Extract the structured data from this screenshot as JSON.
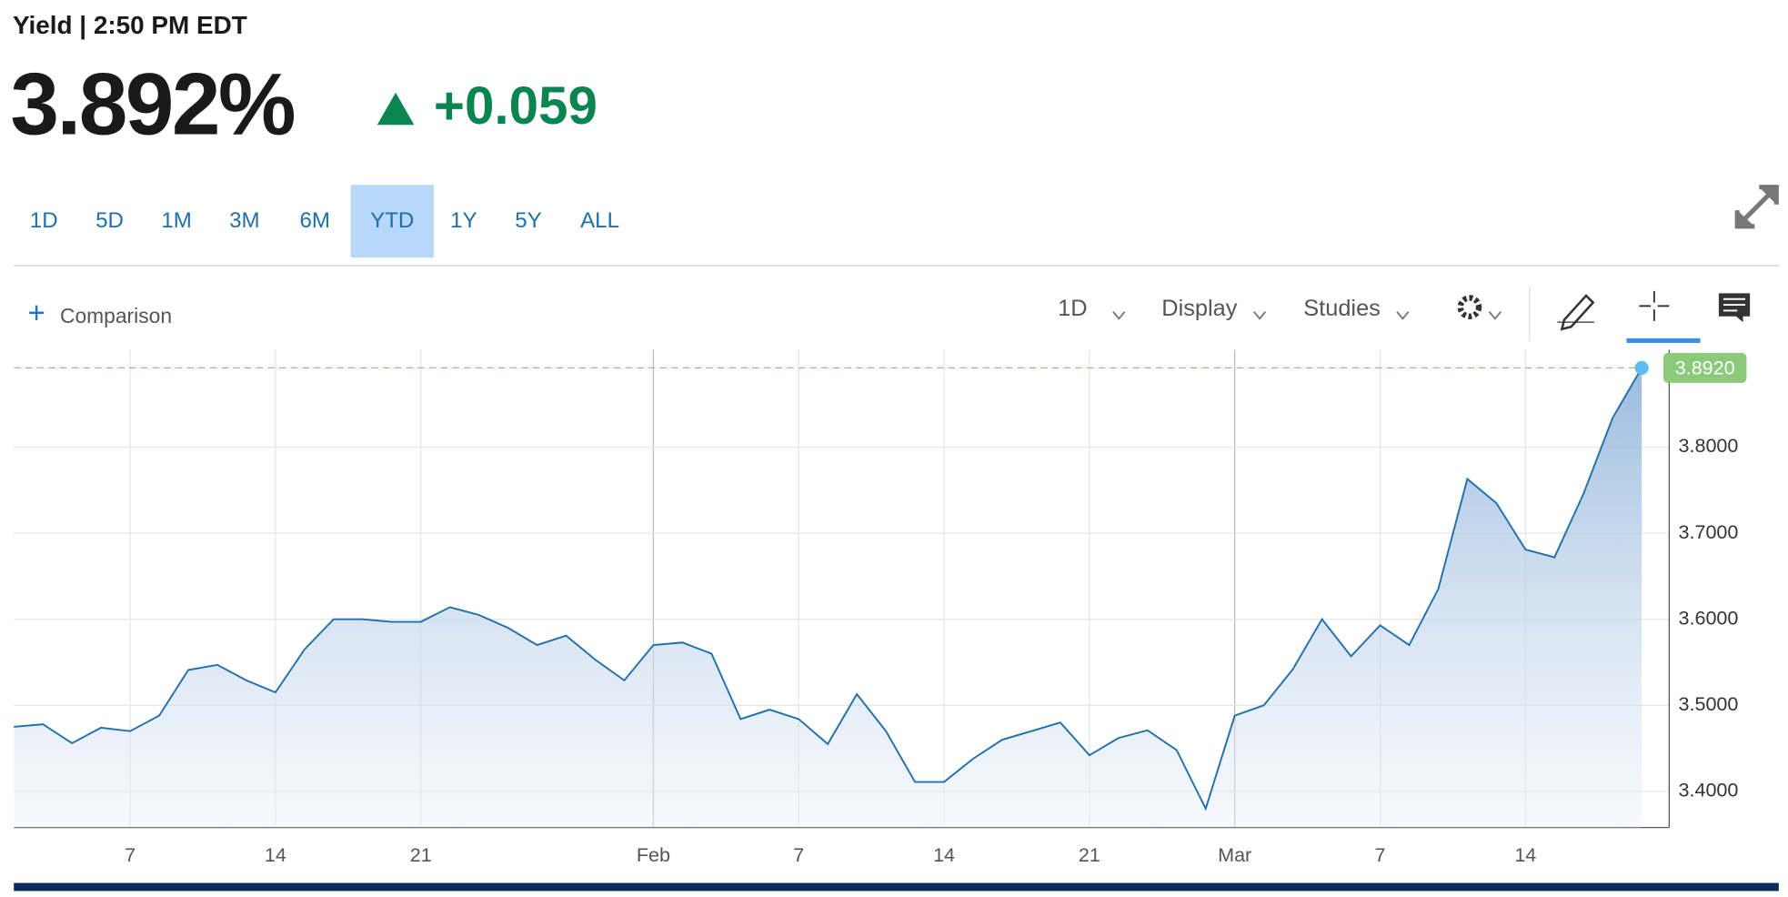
{
  "header": {
    "label": "Yield | 2:50 PM EDT",
    "price": "3.892%",
    "change": "+0.059"
  },
  "ranges": [
    "1D",
    "5D",
    "1M",
    "3M",
    "6M",
    "YTD",
    "1Y",
    "5Y",
    "ALL"
  ],
  "selected_range": "YTD",
  "toolbar": {
    "comparison": "Comparison",
    "interval": "1D",
    "display": "Display",
    "studies": "Studies"
  },
  "chart_data": {
    "type": "line",
    "categories": [
      null,
      null,
      null,
      null,
      "7",
      null,
      null,
      null,
      null,
      "14",
      null,
      null,
      null,
      null,
      "21",
      null,
      null,
      null,
      null,
      null,
      null,
      null,
      "Feb",
      null,
      null,
      null,
      null,
      "7",
      null,
      null,
      null,
      null,
      "14",
      null,
      null,
      null,
      null,
      "21",
      null,
      null,
      null,
      null,
      "Mar",
      null,
      null,
      null,
      null,
      "7",
      null,
      null,
      null,
      null,
      "14",
      null,
      null,
      null,
      null
    ],
    "series": [
      {
        "name": "Yield",
        "color": "#1f6fad",
        "values": [
          3.475,
          3.478,
          3.456,
          3.474,
          3.47,
          3.488,
          3.541,
          3.547,
          3.529,
          3.515,
          3.565,
          3.6,
          3.6,
          3.597,
          3.597,
          3.614,
          3.605,
          3.59,
          3.57,
          3.581,
          3.553,
          3.529,
          3.57,
          3.573,
          3.56,
          3.484,
          3.495,
          3.484,
          3.455,
          3.513,
          3.47,
          3.411,
          3.411,
          3.438,
          3.46,
          3.47,
          3.48,
          3.442,
          3.462,
          3.471,
          3.448,
          3.38,
          3.488,
          3.5,
          3.542,
          3.6,
          3.557,
          3.593,
          3.57,
          3.635,
          3.763,
          3.735,
          3.681,
          3.672,
          3.746,
          3.834,
          3.892
        ]
      }
    ],
    "last_value_label": "3.8920",
    "ylim": [
      3.358,
      3.913
    ],
    "yticks": [
      {
        "value": 3.4,
        "label": "3.4000"
      },
      {
        "value": 3.5,
        "label": "3.5000"
      },
      {
        "value": 3.6,
        "label": "3.6000"
      },
      {
        "value": 3.7,
        "label": "3.7000"
      },
      {
        "value": 3.8,
        "label": "3.8000"
      }
    ],
    "grid": true
  }
}
